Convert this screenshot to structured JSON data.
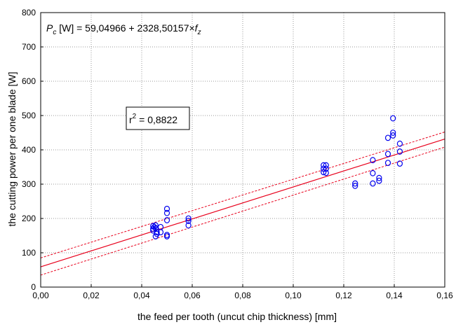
{
  "chart_data": {
    "type": "scatter",
    "xlabel": "the feed per tooth (uncut chip thickness) [mm]",
    "ylabel": "the cutting power per one blade [W]",
    "xlim": [
      0,
      0.16
    ],
    "ylim": [
      0,
      800
    ],
    "xticks": [
      "0,00",
      "0,02",
      "0,04",
      "0,06",
      "0,08",
      "0,10",
      "0,12",
      "0,14",
      "0,16"
    ],
    "yticks": [
      "0",
      "100",
      "200",
      "300",
      "400",
      "500",
      "600",
      "700",
      "800"
    ],
    "grid": true,
    "equation": {
      "p": "P",
      "p_sub": "c",
      "rest": " [W] = 59,04966 + 2328,50157×",
      "f": "f",
      "f_sub": "z"
    },
    "r2": {
      "r": "r",
      "sup": "2",
      "value": " = 0,8822"
    },
    "regression": {
      "intercept": 59.04966,
      "slope": 2328.50157,
      "color": "#e8001c"
    },
    "confidence_band": {
      "lower_at_0": 35,
      "upper_at_0": 85,
      "lower_at_016": 408,
      "upper_at_016": 452,
      "color": "#e8001c"
    },
    "point_color": "#0000ee",
    "points": [
      [
        0.0445,
        178
      ],
      [
        0.0445,
        170
      ],
      [
        0.0445,
        165
      ],
      [
        0.045,
        175
      ],
      [
        0.0455,
        180
      ],
      [
        0.0455,
        172
      ],
      [
        0.046,
        160
      ],
      [
        0.046,
        155
      ],
      [
        0.0455,
        148
      ],
      [
        0.0475,
        175
      ],
      [
        0.0475,
        160
      ],
      [
        0.05,
        228
      ],
      [
        0.05,
        216
      ],
      [
        0.05,
        195
      ],
      [
        0.05,
        152
      ],
      [
        0.05,
        148
      ],
      [
        0.0585,
        200
      ],
      [
        0.0585,
        193
      ],
      [
        0.0585,
        180
      ],
      [
        0.112,
        355
      ],
      [
        0.112,
        345
      ],
      [
        0.112,
        335
      ],
      [
        0.113,
        355
      ],
      [
        0.113,
        345
      ],
      [
        0.113,
        333
      ],
      [
        0.1245,
        302
      ],
      [
        0.1245,
        295
      ],
      [
        0.1315,
        370
      ],
      [
        0.1315,
        332
      ],
      [
        0.1315,
        302
      ],
      [
        0.134,
        318
      ],
      [
        0.134,
        310
      ],
      [
        0.1375,
        435
      ],
      [
        0.1375,
        388
      ],
      [
        0.1375,
        362
      ],
      [
        0.1395,
        492
      ],
      [
        0.1395,
        450
      ],
      [
        0.1395,
        442
      ],
      [
        0.1422,
        418
      ],
      [
        0.1422,
        395
      ],
      [
        0.1422,
        360
      ]
    ]
  }
}
